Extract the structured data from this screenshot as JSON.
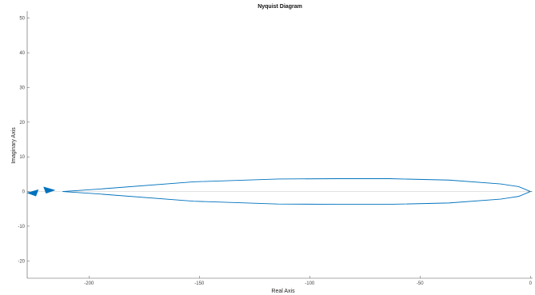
{
  "chart_data": {
    "type": "line",
    "title": "Nyquist Diagram",
    "xlabel": "Real Axis",
    "ylabel": "Imaginary Axis",
    "xlim": [
      -228,
      1
    ],
    "ylim": [
      -25,
      52
    ],
    "xticks": [
      -200,
      -150,
      -100,
      -50,
      0
    ],
    "yticks": [
      -20,
      -10,
      0,
      10,
      20,
      30,
      40,
      50
    ],
    "grid": false,
    "colors": {
      "curve": "#0072BD",
      "zero_line": "#d0d0d0",
      "axes": "#555555"
    },
    "series": [
      {
        "values": [
          {
            "x": 0.0,
            "y": 0.0
          },
          {
            "x": -5.3,
            "y": 1.4
          },
          {
            "x": -13.5,
            "y": 2.2
          },
          {
            "x": -36.9,
            "y": 3.3
          },
          {
            "x": -63.9,
            "y": 3.7
          },
          {
            "x": -87.8,
            "y": 3.7
          },
          {
            "x": -114.5,
            "y": 3.6
          },
          {
            "x": -152.6,
            "y": 2.8
          },
          {
            "x": -195.6,
            "y": 0.7
          },
          {
            "x": -212.0,
            "y": 0.0
          },
          {
            "x": -195.6,
            "y": -0.7
          },
          {
            "x": -152.6,
            "y": -2.8
          },
          {
            "x": -114.5,
            "y": -3.6
          },
          {
            "x": -87.8,
            "y": -3.7
          },
          {
            "x": -63.9,
            "y": -3.7
          },
          {
            "x": -36.9,
            "y": -3.3
          },
          {
            "x": -13.5,
            "y": -2.2
          },
          {
            "x": -5.3,
            "y": -1.4
          },
          {
            "x": 0.0,
            "y": 0.0
          }
        ]
      }
    ],
    "arrows": [
      {
        "x": -218.0,
        "y": 0.4,
        "direction": "right"
      },
      {
        "x": -225.5,
        "y": -0.4,
        "direction": "left"
      }
    ]
  }
}
